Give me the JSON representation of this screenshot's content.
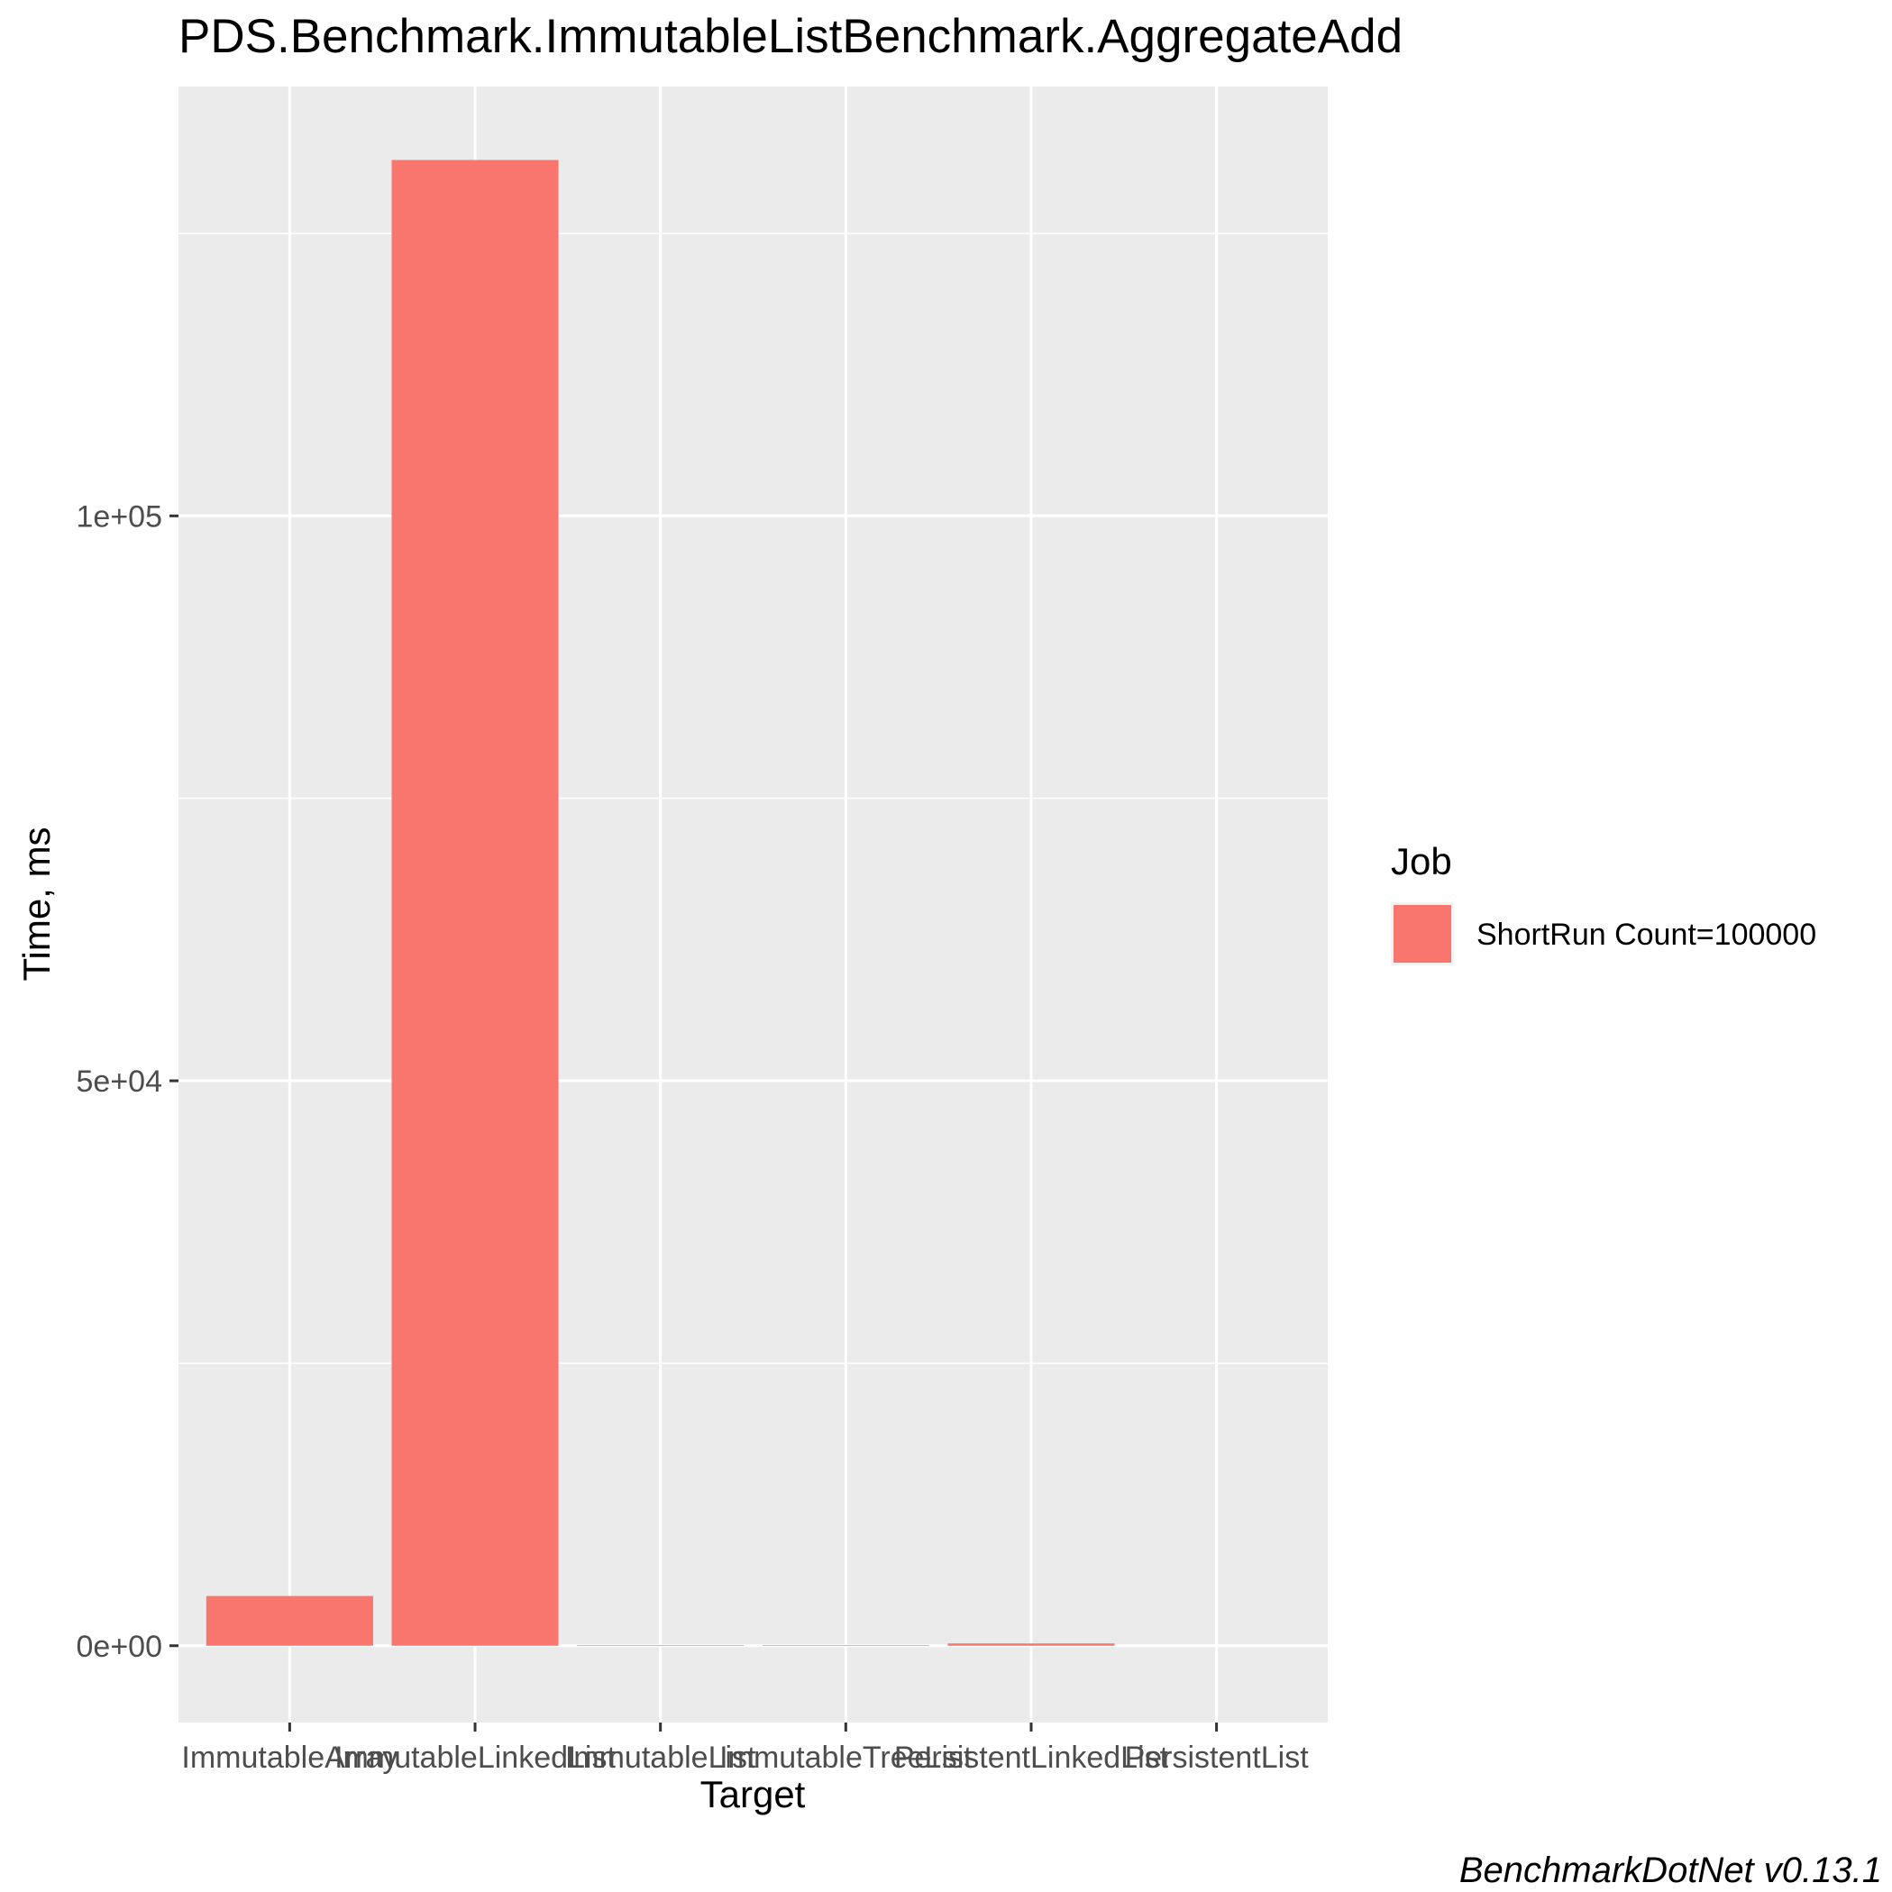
{
  "chart_data": {
    "type": "bar",
    "title": "PDS.Benchmark.ImmutableListBenchmark.AggregateAdd",
    "xlabel": "Target",
    "ylabel": "Time, ms",
    "categories": [
      "ImmutableArray",
      "ImmutableLinkedList",
      "ImmutableList",
      "ImmutableTreeList",
      "PersistentLinkedList",
      "PersistentList"
    ],
    "series": [
      {
        "name": "ShortRun Count=100000",
        "values": [
          4400,
          131500,
          50,
          50,
          200,
          0
        ]
      }
    ],
    "ylim": [
      -6800,
      138000
    ],
    "yticks": [
      0,
      50000,
      100000
    ],
    "ytick_labels": [
      "0e+00",
      "5e+04",
      "1e+05"
    ],
    "grid": true,
    "bar_color": "#F8766D",
    "panel_color": "#EBEBEB",
    "legend": {
      "title": "Job",
      "position": "right"
    },
    "caption": "BenchmarkDotNet v0.13.1"
  }
}
